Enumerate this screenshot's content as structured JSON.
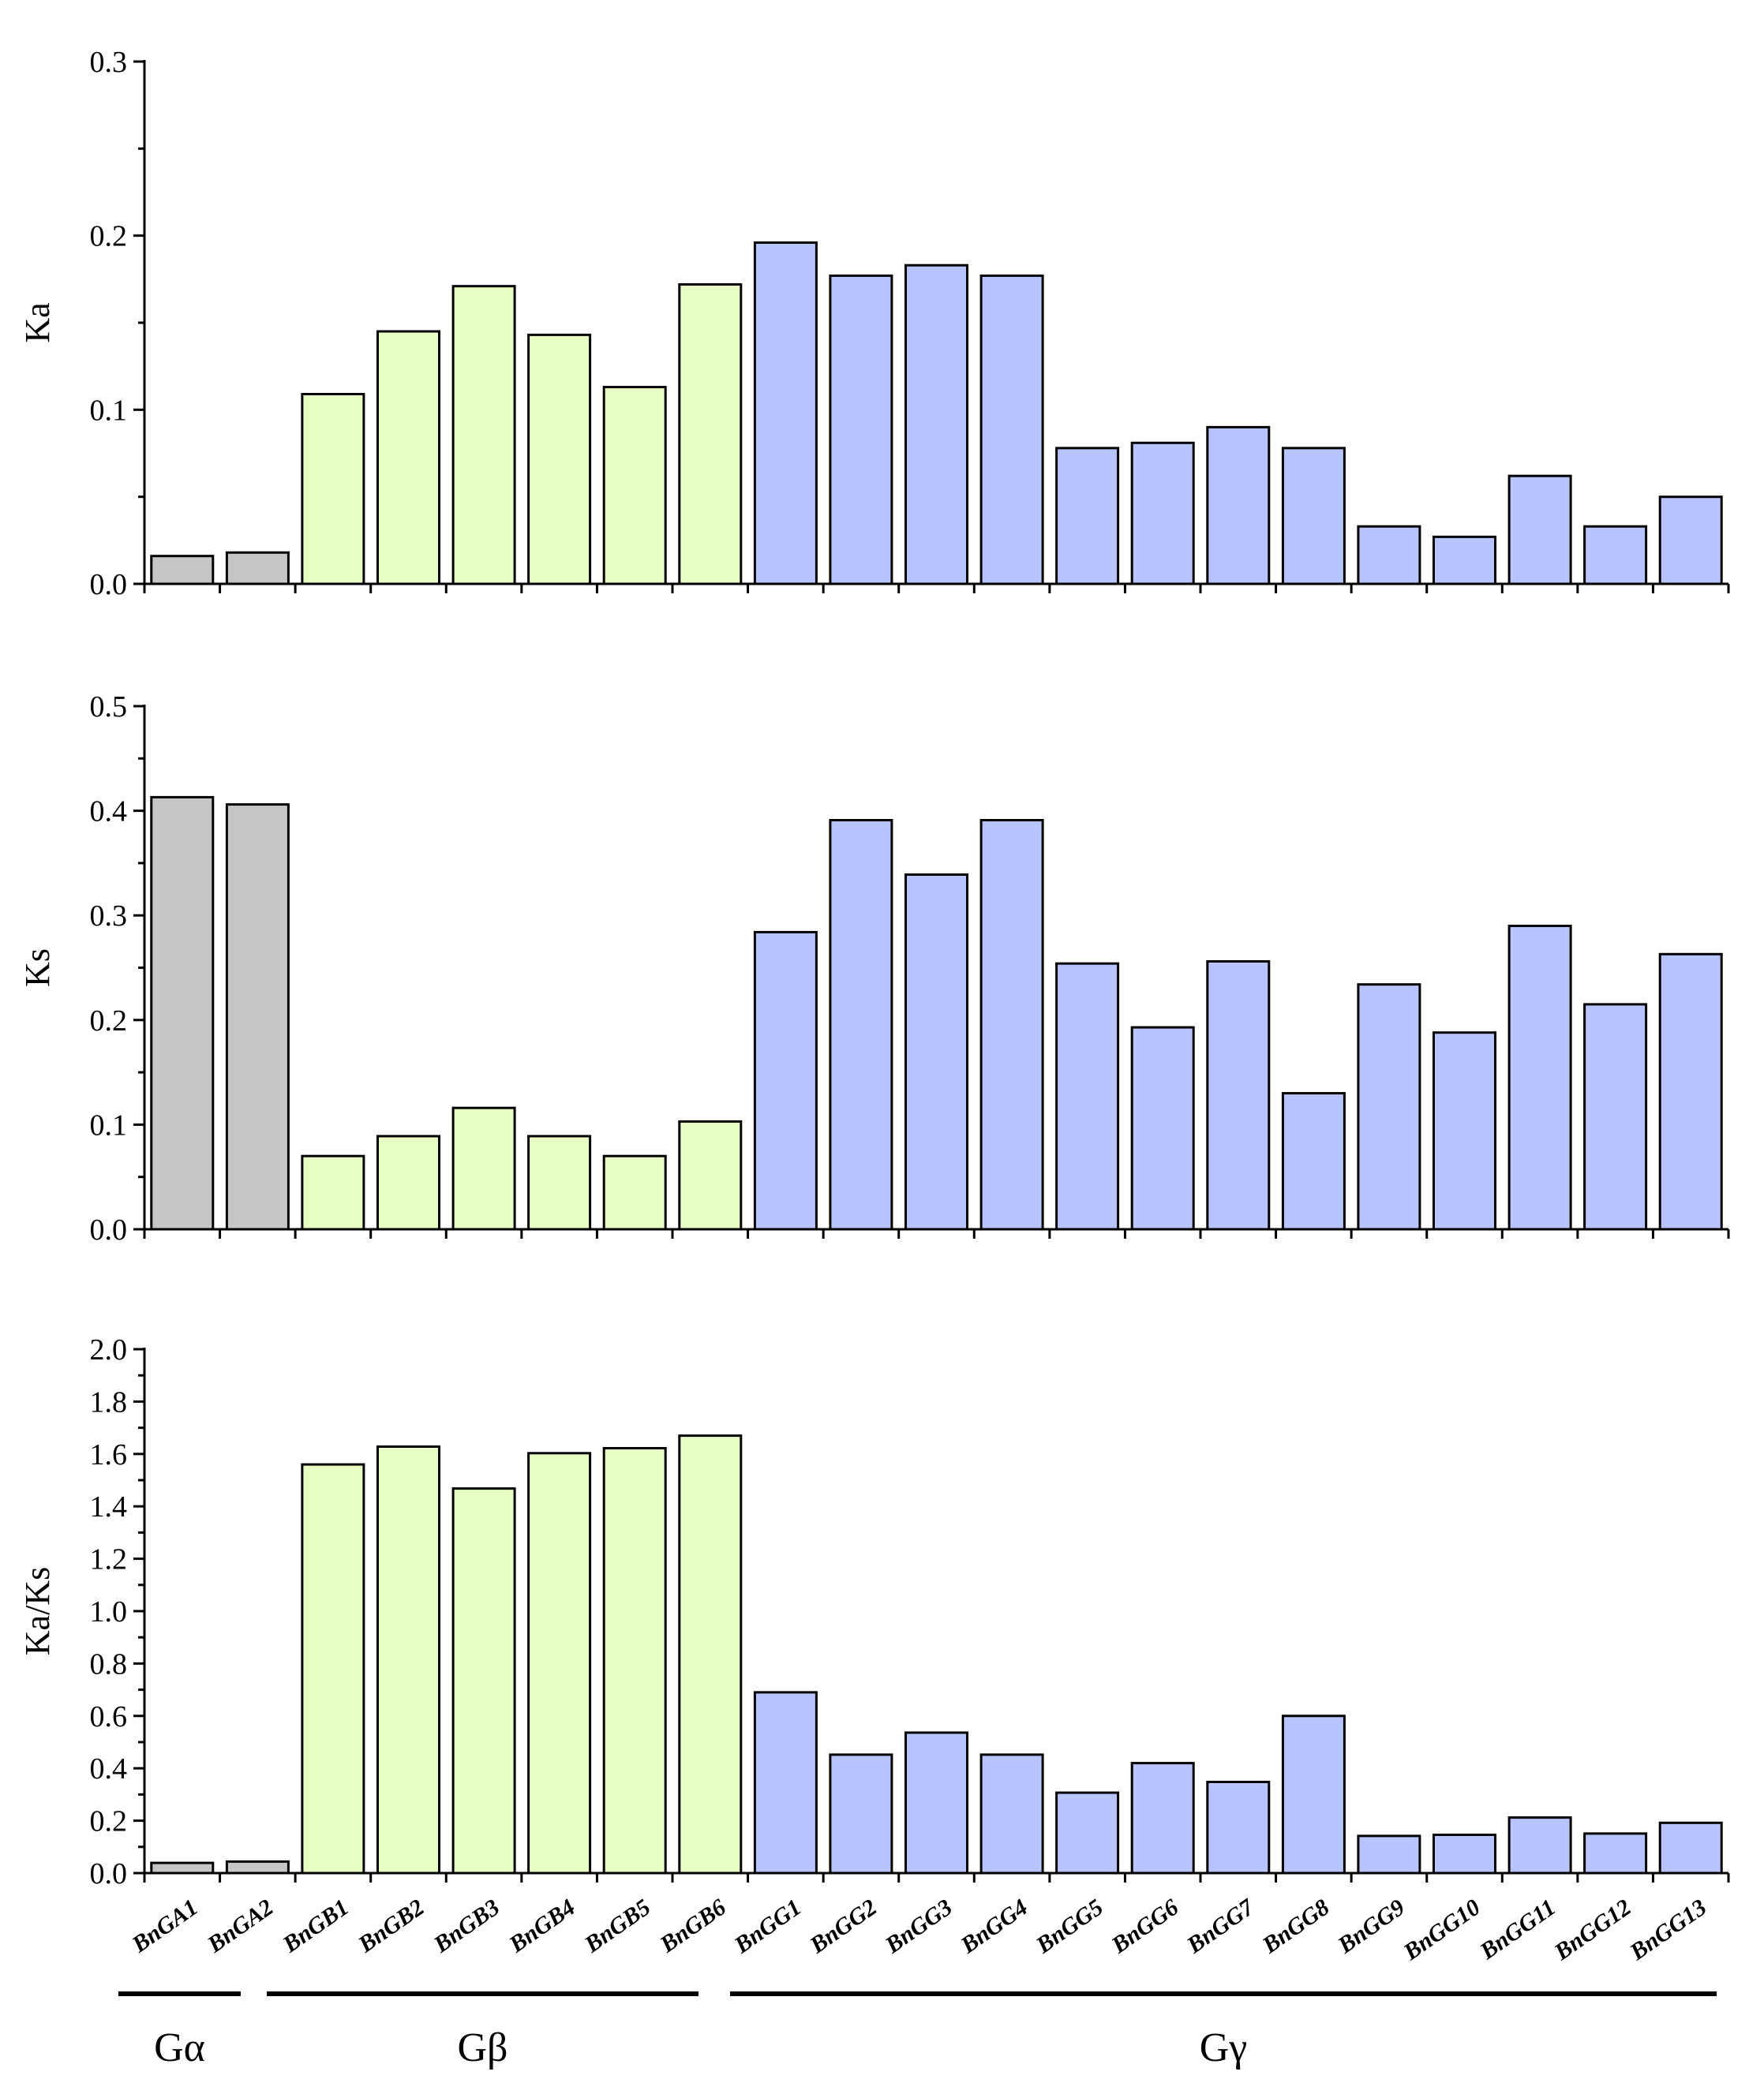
{
  "categories": [
    "BnGA1",
    "BnGA2",
    "BnGB1",
    "BnGB2",
    "BnGB3",
    "BnGB4",
    "BnGB5",
    "BnGB6",
    "BnGG1",
    "BnGG2",
    "BnGG3",
    "BnGG4",
    "BnGG5",
    "BnGG6",
    "BnGG7",
    "BnGG8",
    "BnGG9",
    "BnGG10",
    "BnGG11",
    "BnGG12",
    "BnGG13"
  ],
  "bar_groups": [
    "a",
    "a",
    "b",
    "b",
    "b",
    "b",
    "b",
    "b",
    "g",
    "g",
    "g",
    "g",
    "g",
    "g",
    "g",
    "g",
    "g",
    "g",
    "g",
    "g",
    "g"
  ],
  "colors": {
    "a": "#c6c6c6",
    "b": "#e8fdc4",
    "g": "#b8c4fd",
    "stroke": "#000000"
  },
  "groups": [
    {
      "key": "a",
      "label": "Gα",
      "start": 0,
      "end": 1
    },
    {
      "key": "b",
      "label": "Gβ",
      "start": 2,
      "end": 7
    },
    {
      "key": "g",
      "label": "Gγ",
      "start": 8,
      "end": 20
    }
  ],
  "chart_data": [
    {
      "type": "bar",
      "ylabel": "Ka",
      "ylim": [
        0,
        0.3
      ],
      "yticks": [
        "0.0",
        "0.1",
        "0.2",
        "0.3"
      ],
      "values": [
        0.016,
        0.018,
        0.109,
        0.145,
        0.171,
        0.143,
        0.113,
        0.172,
        0.196,
        0.177,
        0.183,
        0.177,
        0.078,
        0.081,
        0.09,
        0.078,
        0.033,
        0.027,
        0.062,
        0.033,
        0.05
      ]
    },
    {
      "type": "bar",
      "ylabel": "Ks",
      "ylim": [
        0,
        0.5
      ],
      "yticks": [
        "0.0",
        "0.1",
        "0.2",
        "0.3",
        "0.4",
        "0.5"
      ],
      "values": [
        0.413,
        0.406,
        0.07,
        0.089,
        0.116,
        0.089,
        0.07,
        0.103,
        0.284,
        0.391,
        0.339,
        0.391,
        0.254,
        0.193,
        0.256,
        0.13,
        0.234,
        0.188,
        0.29,
        0.215,
        0.263
      ]
    },
    {
      "type": "bar",
      "ylabel": "Ka/Ks",
      "ylim": [
        0,
        2.0
      ],
      "yticks": [
        "0.0",
        "0.2",
        "0.4",
        "0.6",
        "0.8",
        "1.0",
        "1.2",
        "1.4",
        "1.6",
        "1.8",
        "2.0"
      ],
      "values": [
        0.039,
        0.044,
        1.56,
        1.628,
        1.468,
        1.603,
        1.622,
        1.67,
        0.69,
        0.452,
        0.536,
        0.452,
        0.307,
        0.42,
        0.348,
        0.6,
        0.142,
        0.146,
        0.212,
        0.151,
        0.192
      ]
    }
  ]
}
